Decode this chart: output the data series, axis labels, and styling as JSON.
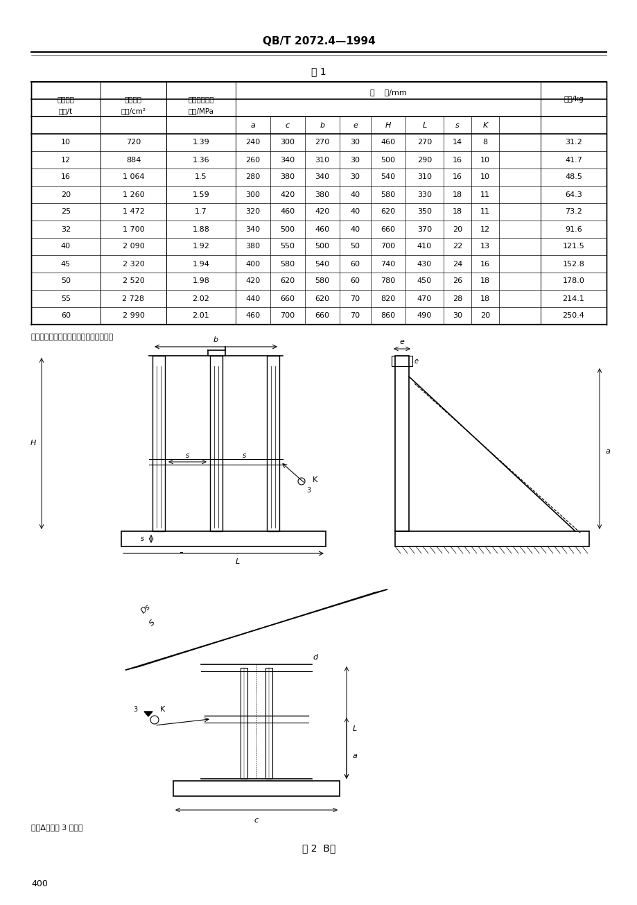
{
  "title": "QB/T 2072.4—1994",
  "table_title": "表 1",
  "header_row1": [
    "支座允许",
    "支座支撑",
    "支撑面上单位",
    "尺  寸/mm",
    ""
  ],
  "header_row2": [
    "负荷/t",
    "面积/cm²",
    "压力/MPa",
    "a",
    "c",
    "b",
    "e",
    "H",
    "L",
    "s",
    "K",
    "质量/kg"
  ],
  "table_data": [
    [
      10,
      720,
      1.39,
      240,
      300,
      270,
      30,
      460,
      270,
      14,
      8,
      31.2
    ],
    [
      12,
      884,
      1.36,
      260,
      340,
      310,
      30,
      500,
      290,
      16,
      10,
      41.7
    ],
    [
      16,
      "1 064",
      1.5,
      280,
      380,
      340,
      30,
      540,
      310,
      16,
      10,
      48.5
    ],
    [
      20,
      "1 260",
      1.59,
      300,
      420,
      380,
      40,
      580,
      330,
      18,
      11,
      64.3
    ],
    [
      25,
      "1 472",
      1.7,
      320,
      460,
      420,
      40,
      620,
      350,
      18,
      11,
      73.2
    ],
    [
      32,
      "1 700",
      1.88,
      340,
      500,
      460,
      40,
      660,
      370,
      20,
      12,
      91.6
    ],
    [
      40,
      "2 090",
      1.92,
      380,
      550,
      500,
      50,
      700,
      410,
      22,
      13,
      121.5
    ],
    [
      45,
      "2 320",
      1.94,
      400,
      580,
      540,
      60,
      740,
      430,
      24,
      16,
      152.8
    ],
    [
      50,
      "2 520",
      1.98,
      420,
      620,
      580,
      60,
      780,
      450,
      26,
      18,
      178.0
    ],
    [
      55,
      "2 728",
      2.02,
      440,
      660,
      620,
      70,
      820,
      470,
      28,
      18,
      214.1
    ],
    [
      60,
      "2 990",
      2.01,
      460,
      700,
      660,
      70,
      860,
      490,
      30,
      20,
      250.4
    ]
  ],
  "note1": "注：支座帪板的材料由设计者自行决定。",
  "note2": "注：Δ値接表 3 规定。",
  "fig_caption": "图 2  B型",
  "page_num": "400",
  "bg_color": "#ffffff",
  "text_color": "#000000",
  "line_color": "#000000"
}
